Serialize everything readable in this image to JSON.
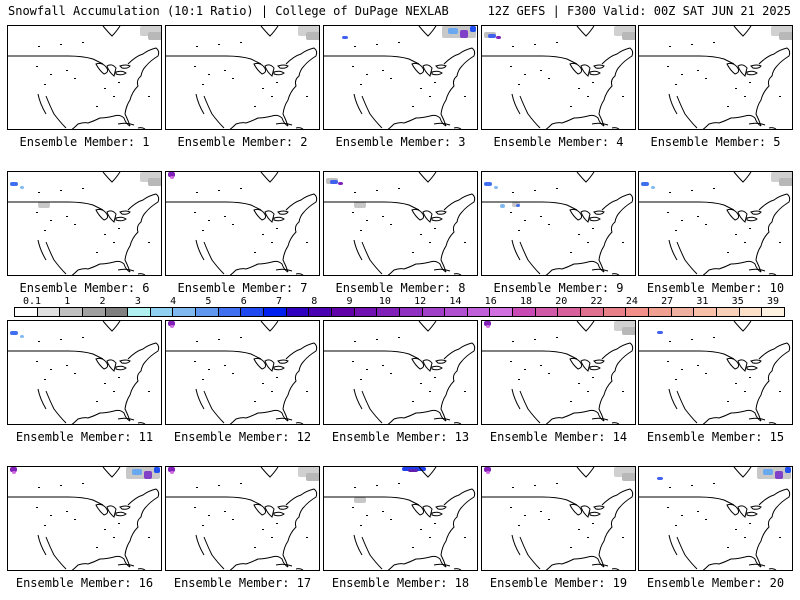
{
  "header": {
    "left_title": "Snowfall Accumulation (10:1 Ratio) | College of DuPage NEXLAB",
    "right_title": "12Z GEFS | F300 Valid: 00Z SAT JUN 21 2025"
  },
  "panels": [
    {
      "caption": "Ensemble Member: 1",
      "snow": [
        "ne-gray"
      ]
    },
    {
      "caption": "Ensemble Member: 2",
      "snow": [
        "ne-gray"
      ]
    },
    {
      "caption": "Ensemble Member: 3",
      "snow": [
        "ne-heavy",
        "nw-small"
      ]
    },
    {
      "caption": "Ensemble Member: 4",
      "snow": [
        "nw-mix",
        "ne-gray"
      ]
    },
    {
      "caption": "Ensemble Member: 5",
      "snow": [
        "ne-gray"
      ]
    },
    {
      "caption": "Ensemble Member: 6",
      "snow": [
        "nw-blue",
        "west-gray",
        "ne-gray"
      ]
    },
    {
      "caption": "Ensemble Member: 7",
      "snow": [
        "nw-purple"
      ]
    },
    {
      "caption": "Ensemble Member: 8",
      "snow": [
        "nw-mix",
        "west-gray"
      ]
    },
    {
      "caption": "Ensemble Member: 9",
      "snow": [
        "nw-blue",
        "west-blue"
      ]
    },
    {
      "caption": "Ensemble Member: 10",
      "snow": [
        "nw-blue",
        "ne-gray"
      ]
    },
    {
      "caption": "Ensemble Member: 11",
      "snow": [
        "nw-blue"
      ]
    },
    {
      "caption": "Ensemble Member: 12",
      "snow": [
        "nw-purple"
      ]
    },
    {
      "caption": "Ensemble Member: 13",
      "snow": []
    },
    {
      "caption": "Ensemble Member: 14",
      "snow": [
        "nw-purple",
        "ne-gray"
      ]
    },
    {
      "caption": "Ensemble Member: 15",
      "snow": [
        "nw-small"
      ]
    },
    {
      "caption": "Ensemble Member: 16",
      "snow": [
        "nw-purple",
        "ne-heavy"
      ]
    },
    {
      "caption": "Ensemble Member: 17",
      "snow": [
        "nw-purple",
        "ne-gray"
      ]
    },
    {
      "caption": "Ensemble Member: 18",
      "snow": [
        "north-blue",
        "west-gray"
      ]
    },
    {
      "caption": "Ensemble Member: 19",
      "snow": [
        "nw-purple",
        "ne-gray"
      ]
    },
    {
      "caption": "Ensemble Member: 20",
      "snow": [
        "nw-small",
        "ne-heavy"
      ]
    }
  ],
  "colorbar": {
    "labels": [
      "0.1",
      "1",
      "2",
      "3",
      "4",
      "5",
      "6",
      "7",
      "8",
      "9",
      "10",
      "12",
      "14",
      "16",
      "18",
      "20",
      "22",
      "24",
      "27",
      "31",
      "35",
      "39"
    ],
    "colors": [
      "#ffffff",
      "#e0e0e0",
      "#c0c0c0",
      "#a0a0a0",
      "#808080",
      "#b0f0f0",
      "#90d0f0",
      "#80b8f0",
      "#6098f0",
      "#4070f0",
      "#2048f0",
      "#0020f0",
      "#3000c0",
      "#4800b0",
      "#6000a8",
      "#7010b0",
      "#8020b8",
      "#9030c0",
      "#a040c8",
      "#b050d0",
      "#c060d8",
      "#d070e0",
      "#c84ab4",
      "#d05aa8",
      "#d8609c",
      "#e07090",
      "#e88088",
      "#f09088",
      "#f0a090",
      "#f0b0a0",
      "#f8c0a8",
      "#f8d0b8",
      "#fce0c8",
      "#fff0e0"
    ]
  }
}
